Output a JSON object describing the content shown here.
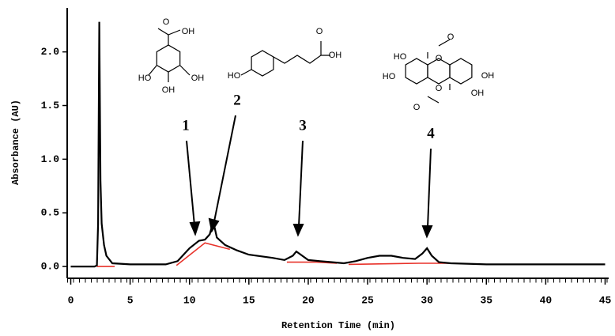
{
  "chart_data": {
    "type": "line",
    "y_label": "Absorbance (AU)",
    "x_label": "Retention Time (min)",
    "xlim": [
      -0.3,
      45.3
    ],
    "ylim": [
      -0.11,
      2.41
    ],
    "xticks": [
      0,
      5,
      10,
      15,
      20,
      25,
      30,
      35,
      40,
      45
    ],
    "yticks": [
      {
        "value": 0,
        "label": "0.0"
      },
      0.5,
      {
        "value": 1,
        "label": "1.0"
      },
      1.5,
      {
        "value": 2,
        "label": "2.0"
      }
    ],
    "series": [
      {
        "color": "#000000",
        "x": [
          0,
          2.0,
          2.2,
          2.3,
          2.4,
          2.5,
          2.6,
          2.8,
          3.0,
          3.5,
          5,
          8,
          9,
          10,
          10.8,
          11.3,
          11.7,
          12,
          12.3,
          13,
          14,
          15,
          17,
          18,
          18.7,
          19,
          19.5,
          20,
          21,
          22,
          23,
          24,
          25,
          26,
          27,
          28,
          29,
          29.6,
          30,
          30.4,
          31,
          32,
          35,
          45
        ],
        "values": [
          0,
          0,
          0.01,
          0.4,
          2.28,
          0.8,
          0.4,
          0.2,
          0.1,
          0.03,
          0.02,
          0.02,
          0.05,
          0.17,
          0.24,
          0.25,
          0.3,
          0.42,
          0.27,
          0.2,
          0.15,
          0.11,
          0.08,
          0.06,
          0.1,
          0.14,
          0.1,
          0.06,
          0.05,
          0.04,
          0.03,
          0.05,
          0.08,
          0.1,
          0.1,
          0.08,
          0.07,
          0.12,
          0.17,
          0.1,
          0.04,
          0.03,
          0.02,
          0.02
        ]
      },
      {
        "color": "#e8322a",
        "x": [
          2.2,
          3.7,
          null,
          8.9,
          11.3,
          13.4,
          null,
          18.2,
          20.7,
          22.4,
          null,
          23.4,
          29.3,
          31.8
        ],
        "values": [
          0,
          0,
          null,
          0.01,
          0.22,
          0.16,
          null,
          0.04,
          0.04,
          0.03,
          null,
          0.02,
          0.03,
          0.03
        ]
      }
    ],
    "annotations": [
      "1",
      "2",
      "3",
      "4"
    ],
    "structures": [
      [
        "O",
        "OH",
        "HO",
        "OH",
        "OH"
      ],
      [
        "HO",
        "O",
        "OH"
      ],
      [
        "O",
        "O",
        "HO",
        "HO",
        "O",
        "O",
        "OH",
        "OH"
      ]
    ]
  }
}
